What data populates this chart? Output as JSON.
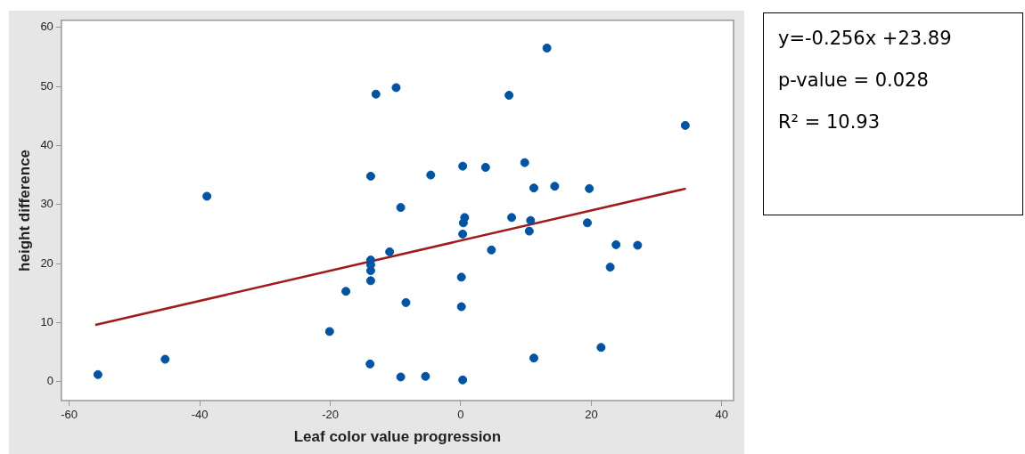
{
  "chart_data": {
    "type": "scatter",
    "xlabel": "Leaf color value progression",
    "ylabel": "height difference",
    "xlim": [
      -61.2,
      41.8
    ],
    "ylim": [
      -3.2,
      61.2
    ],
    "xticks": [
      -60,
      -40,
      -20,
      0,
      20,
      40
    ],
    "yticks": [
      0,
      10,
      20,
      30,
      40,
      50,
      60
    ],
    "grid": false,
    "legend": false,
    "marker": "circle",
    "series": [
      {
        "color": "#0054a6",
        "x": [
          -55.6,
          -45.3,
          -38.9,
          -20.1,
          -17.6,
          -13.8,
          -13.8,
          -13.8,
          -13.8,
          -13.8,
          -13.9,
          -13.0,
          -10.9,
          -9.9,
          -9.2,
          -9.2,
          -8.4,
          -5.4,
          -4.6,
          0.3,
          0.3,
          0.4,
          0.6,
          0.1,
          0.1,
          0.3,
          3.8,
          4.7,
          7.4,
          7.8,
          9.8,
          10.5,
          10.7,
          11.2,
          11.2,
          13.2,
          14.4,
          19.4,
          19.7,
          21.5,
          22.9,
          23.8,
          27.1,
          34.4
        ],
        "values": [
          1.2,
          3.8,
          31.4,
          8.5,
          15.3,
          34.8,
          20.6,
          19.8,
          18.8,
          17.1,
          3.0,
          48.7,
          22.0,
          49.8,
          29.5,
          0.8,
          13.4,
          0.9,
          35.0,
          36.5,
          25.0,
          26.9,
          27.8,
          17.7,
          12.7,
          0.3,
          36.3,
          22.3,
          48.5,
          27.8,
          37.1,
          25.5,
          27.3,
          4.0,
          32.8,
          56.5,
          33.1,
          26.9,
          32.7,
          5.8,
          19.4,
          23.2,
          23.1,
          43.4
        ]
      },
      {
        "type": "line",
        "color": "#a01c1c",
        "marker": "none",
        "x": [
          -56,
          34.5
        ],
        "values": [
          9.6,
          32.7
        ]
      }
    ],
    "annotations": [
      "y=-0.256x +23.89",
      "p-value = 0.028",
      "R² = 10.93"
    ]
  }
}
